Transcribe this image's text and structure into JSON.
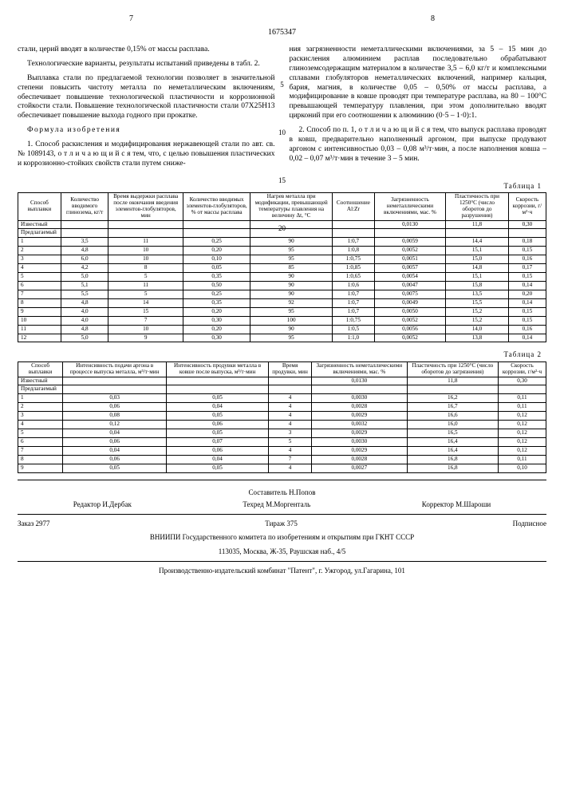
{
  "page_left_num": "7",
  "page_right_num": "8",
  "doc_number": "1675347",
  "line_nums": {
    "n5": "5",
    "n10": "10",
    "n15": "15",
    "n20": "20"
  },
  "left_col": {
    "p1": "стали, церий вводят в количестве 0,15% от массы расплава.",
    "p2": "Технологические варианты, результаты испытаний приведены в табл. 2.",
    "p3": "Выплавка стали по предлагаемой технологии позволяет в значительной степени повысить чистоту металла по неметаллическим включениям, обеспечивает повышение технологической пластичности и коррозионной стойкости стали. Повышение технологической пластичности стали 07Х25Н13 обеспечивает повышение выхода годного при прокатке.",
    "formula_title": "Формула изобретения",
    "p4": "1. Способ раскисления и модифицирования нержавеющей стали по авт. св. № 1089143, о т л и ч а ю щ и й с я тем, что, с целью повышения пластических и коррозионно-стойких свойств стали путем сниже-"
  },
  "right_col": {
    "p1": "ния загрязненности неметаллическими включениями, за 5 – 15 мин до раскисления алюминием расплав последовательно обрабатывают глиноземсодержащим материалом в количестве 3,5 – 6,0 кг/т и комплексными сплавами глобуляторов неметаллических включений, например кальция, бария, магния, в количестве 0,05 – 0,50% от массы расплава, а модифицирование в ковше проводят при температуре расплава, на 80 – 100°С превышающей температуру плавления, при этом дополнительно вводят цирконий при его соотношении к алюминию (0·5 – 1·0):1.",
    "p2": "2. Способ по п. 1, о т л и ч а ю щ и й с я тем, что выпуск расплава проводят в ковш, предварительно наполненный аргоном, при выпуске продувают аргоном с интенсивностью 0,03 – 0,08 м³/т·мин, а после наполнения ковша – 0,02 – 0,07 м³/т·мин в течение 3 – 5 мин."
  },
  "table1": {
    "label": "Таблица 1",
    "headers": [
      "Способ выплавки",
      "Количество вводимого глинозема, кг/т",
      "Время выдержки расплава после окончания введения элементов-глобуляторов, мин",
      "Количество вводимых элементов-глобуляторов, % от массы расплава",
      "Нагрев металла при модификации, превышающей температуры плавления на величину Δt, °С",
      "Соотношение Al:Zr",
      "Загрязненность неметаллическими включениями, мас. %",
      "Пластичность при 1250°С (число оборотов до разрушения)",
      "Скорость коррозии, г/м²·ч"
    ],
    "rows": [
      [
        "Известный",
        "",
        "",
        "",
        "",
        "",
        "0,0130",
        "11,8",
        "0,30"
      ],
      [
        "Предлагаемый",
        "",
        "",
        "",
        "",
        "",
        "",
        "",
        ""
      ],
      [
        "1",
        "3,5",
        "11",
        "0,25",
        "90",
        "1:0,7",
        "0,0059",
        "14,4",
        "0,18"
      ],
      [
        "2",
        "4,8",
        "10",
        "0,20",
        "95",
        "1:0,8",
        "0,0052",
        "15,1",
        "0,15"
      ],
      [
        "3",
        "6,0",
        "10",
        "0,10",
        "95",
        "1:0,75",
        "0,0051",
        "15,0",
        "0,16"
      ],
      [
        "4",
        "4,2",
        "8",
        "0,05",
        "85",
        "1:0,85",
        "0,0057",
        "14,8",
        "0,17"
      ],
      [
        "5",
        "5,0",
        "5",
        "0,35",
        "90",
        "1:0,65",
        "0,0054",
        "15,1",
        "0,15"
      ],
      [
        "6",
        "5,1",
        "11",
        "0,50",
        "90",
        "1:0,6",
        "0,0047",
        "15,8",
        "0,14"
      ],
      [
        "7",
        "5,5",
        "5",
        "0,25",
        "90",
        "1:0,7",
        "0,0075",
        "13,5",
        "0,20"
      ],
      [
        "8",
        "4,8",
        "14",
        "0,35",
        "92",
        "1:0,7",
        "0,0049",
        "15,5",
        "0,14"
      ],
      [
        "9",
        "4,0",
        "15",
        "0,20",
        "95",
        "1:0,7",
        "0,0050",
        "15,2",
        "0,15"
      ],
      [
        "10",
        "4,0",
        "7",
        "0,30",
        "100",
        "1:0,75",
        "0,0052",
        "15,2",
        "0,15"
      ],
      [
        "11",
        "4,8",
        "10",
        "0,20",
        "90",
        "1:0,5",
        "0,0056",
        "14,0",
        "0,16"
      ],
      [
        "12",
        "5,0",
        "9",
        "0,30",
        "95",
        "1:1,0",
        "0,0052",
        "13,8",
        "0,14"
      ]
    ]
  },
  "table2": {
    "label": "Таблица 2",
    "headers": [
      "Способ выплавки",
      "Интенсивность подачи аргона в процессе выпуска металла, м³/т·мин",
      "Интенсивность продувки металла в ковше после выпуска, м³/т·мин",
      "Время продувки, мин",
      "Загрязненность неметаллическими включениями, мас. %",
      "Пластичность при 1250°С (число оборотов до загрязнения)",
      "Скорость коррозии, г/м²·ч"
    ],
    "rows": [
      [
        "Известный",
        "",
        "",
        "",
        "0,0130",
        "11,8",
        "0,30"
      ],
      [
        "Предлагаемый",
        "",
        "",
        "",
        "",
        "",
        ""
      ],
      [
        "1",
        "0,03",
        "0,05",
        "4",
        "0,0030",
        "16,2",
        "0,11"
      ],
      [
        "2",
        "0,06",
        "0,04",
        "4",
        "0,0028",
        "16,7",
        "0,11"
      ],
      [
        "3",
        "0,08",
        "0,05",
        "4",
        "0,0029",
        "16,6",
        "0,12"
      ],
      [
        "4",
        "0,12",
        "0,06",
        "4",
        "0,0032",
        "16,0",
        "0,12"
      ],
      [
        "5",
        "0,04",
        "0,05",
        "3",
        "0,0029",
        "16,5",
        "0,12"
      ],
      [
        "6",
        "0,06",
        "0,07",
        "5",
        "0,0030",
        "16,4",
        "0,12"
      ],
      [
        "7",
        "0,04",
        "0,06",
        "4",
        "0,0029",
        "16,4",
        "0,12"
      ],
      [
        "8",
        "0,06",
        "0,04",
        "7",
        "0,0028",
        "16,8",
        "0,11"
      ],
      [
        "9",
        "0,05",
        "0,05",
        "4",
        "0,0027",
        "16,8",
        "0,10"
      ]
    ]
  },
  "footer": {
    "compiler": "Составитель Н.Попов",
    "editor": "Редактор И.Дербак",
    "techred": "Техред М.Моргенталь",
    "corrector": "Корректор М.Шароши",
    "order": "Заказ 2977",
    "tirage": "Тираж 375",
    "subscribe": "Подписное",
    "org": "ВНИИПИ Государственного комитета по изобретениям и открытиям при ГКНТ СССР",
    "address": "113035, Москва, Ж-35, Раушская наб., 4/5",
    "printer": "Производственно-издательский комбинат \"Патент\", г. Ужгород, ул.Гагарина, 101"
  }
}
